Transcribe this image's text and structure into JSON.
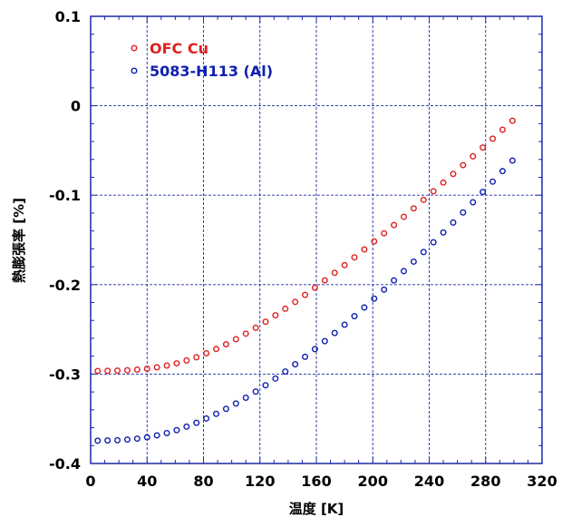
{
  "chart_data": {
    "type": "scatter",
    "xlabel": "温度 [K]",
    "ylabel": "熱膨張率 [%]",
    "xlim": [
      0,
      320
    ],
    "ylim": [
      -0.4,
      0.1
    ],
    "x_ticks": [
      "0",
      "40",
      "80",
      "120",
      "160",
      "200",
      "240",
      "280",
      "320"
    ],
    "y_ticks": [
      "0.1",
      "0",
      "-0.1",
      "-0.2",
      "-0.3",
      "-0.4"
    ],
    "grid": true,
    "legend_position": "top-left",
    "series": [
      {
        "name": "OFC Cu",
        "color": "#e02020",
        "marker": "open-circle",
        "x": [
          5,
          12,
          19,
          26,
          33,
          40,
          47,
          54,
          61,
          68,
          75,
          82,
          89,
          96,
          103,
          110,
          117,
          124,
          131,
          138,
          145,
          152,
          159,
          166,
          173,
          180,
          187,
          194,
          201,
          208,
          215,
          222,
          229,
          236,
          243,
          250,
          257,
          264,
          271,
          278,
          285,
          292,
          299
        ],
        "y": [
          -0.2965,
          -0.2964,
          -0.2962,
          -0.2958,
          -0.295,
          -0.294,
          -0.2925,
          -0.2905,
          -0.288,
          -0.2848,
          -0.2812,
          -0.2768,
          -0.272,
          -0.2667,
          -0.261,
          -0.2548,
          -0.2483,
          -0.2415,
          -0.2343,
          -0.227,
          -0.2193,
          -0.2115,
          -0.2035,
          -0.1952,
          -0.1868,
          -0.1782,
          -0.1695,
          -0.1607,
          -0.1517,
          -0.1426,
          -0.1334,
          -0.1241,
          -0.1147,
          -0.1052,
          -0.0956,
          -0.0859,
          -0.0762,
          -0.0664,
          -0.0566,
          -0.0467,
          -0.0368,
          -0.0268,
          -0.0168
        ]
      },
      {
        "name": "5083-H113 (Al)",
        "color": "#1020b0",
        "marker": "open-circle",
        "x": [
          5,
          12,
          19,
          26,
          33,
          40,
          47,
          54,
          61,
          68,
          75,
          82,
          89,
          96,
          103,
          110,
          117,
          124,
          131,
          138,
          145,
          152,
          159,
          166,
          173,
          180,
          187,
          194,
          201,
          208,
          215,
          222,
          229,
          236,
          243,
          250,
          257,
          264,
          271,
          278,
          285,
          292,
          299
        ],
        "y": [
          -0.3745,
          -0.3743,
          -0.374,
          -0.3733,
          -0.3722,
          -0.3707,
          -0.3685,
          -0.366,
          -0.3627,
          -0.3588,
          -0.3545,
          -0.3497,
          -0.3445,
          -0.3389,
          -0.3329,
          -0.3265,
          -0.3196,
          -0.3125,
          -0.305,
          -0.2972,
          -0.2891,
          -0.2807,
          -0.2721,
          -0.2632,
          -0.2541,
          -0.2448,
          -0.2353,
          -0.2256,
          -0.2157,
          -0.2056,
          -0.1953,
          -0.1849,
          -0.1743,
          -0.1636,
          -0.1527,
          -0.1417,
          -0.1306,
          -0.1193,
          -0.1079,
          -0.0964,
          -0.0848,
          -0.0731,
          -0.0613
        ]
      }
    ]
  }
}
